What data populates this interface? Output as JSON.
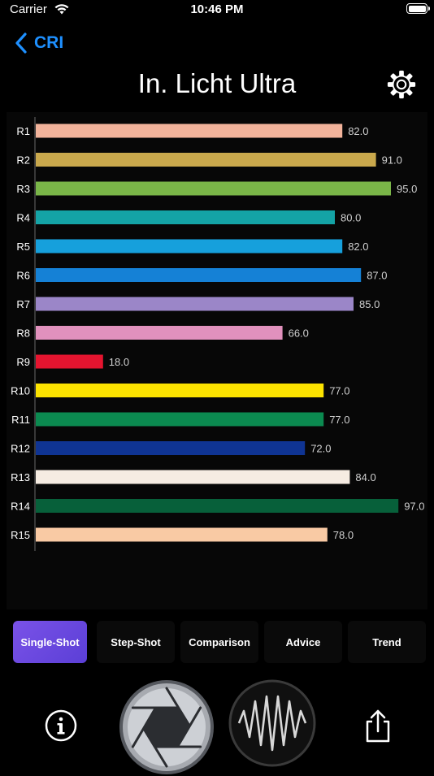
{
  "status_bar": {
    "carrier": "Carrier",
    "time": "10:46 PM"
  },
  "nav": {
    "back_label": "CRI"
  },
  "page": {
    "title": "In. Licht Ultra"
  },
  "chart_data": {
    "type": "bar",
    "orientation": "horizontal",
    "categories": [
      "R1",
      "R2",
      "R3",
      "R4",
      "R5",
      "R6",
      "R7",
      "R8",
      "R9",
      "R10",
      "R11",
      "R12",
      "R13",
      "R14",
      "R15"
    ],
    "values": [
      82.0,
      91.0,
      95.0,
      80.0,
      82.0,
      87.0,
      85.0,
      66.0,
      18.0,
      77.0,
      77.0,
      72.0,
      84.0,
      97.0,
      78.0
    ],
    "value_labels": [
      "82.0",
      "91.0",
      "95.0",
      "80.0",
      "82.0",
      "87.0",
      "85.0",
      "66.0",
      "18.0",
      "77.0",
      "77.0",
      "72.0",
      "84.0",
      "97.0",
      "78.0"
    ],
    "colors": [
      "#f2b39b",
      "#c9a84c",
      "#7ab648",
      "#14a3a6",
      "#16a0dc",
      "#1581d6",
      "#9b86c8",
      "#e191bd",
      "#e5142f",
      "#fce300",
      "#0b8a50",
      "#0f3493",
      "#f6ece2",
      "#07603a",
      "#f9caa4"
    ],
    "xlim": [
      0,
      100
    ],
    "grid": false,
    "legend": "none"
  },
  "tabs": [
    {
      "label": "Single-Shot",
      "active": true
    },
    {
      "label": "Step-Shot",
      "active": false
    },
    {
      "label": "Comparison",
      "active": false
    },
    {
      "label": "Advice",
      "active": false
    },
    {
      "label": "Trend",
      "active": false
    }
  ],
  "colors": {
    "accent": "#1e90ff",
    "tab_active": "#6a4ae0"
  },
  "bottom_bar": {
    "icons": [
      "info-icon",
      "shutter-icon",
      "waveform-icon",
      "share-icon"
    ]
  }
}
